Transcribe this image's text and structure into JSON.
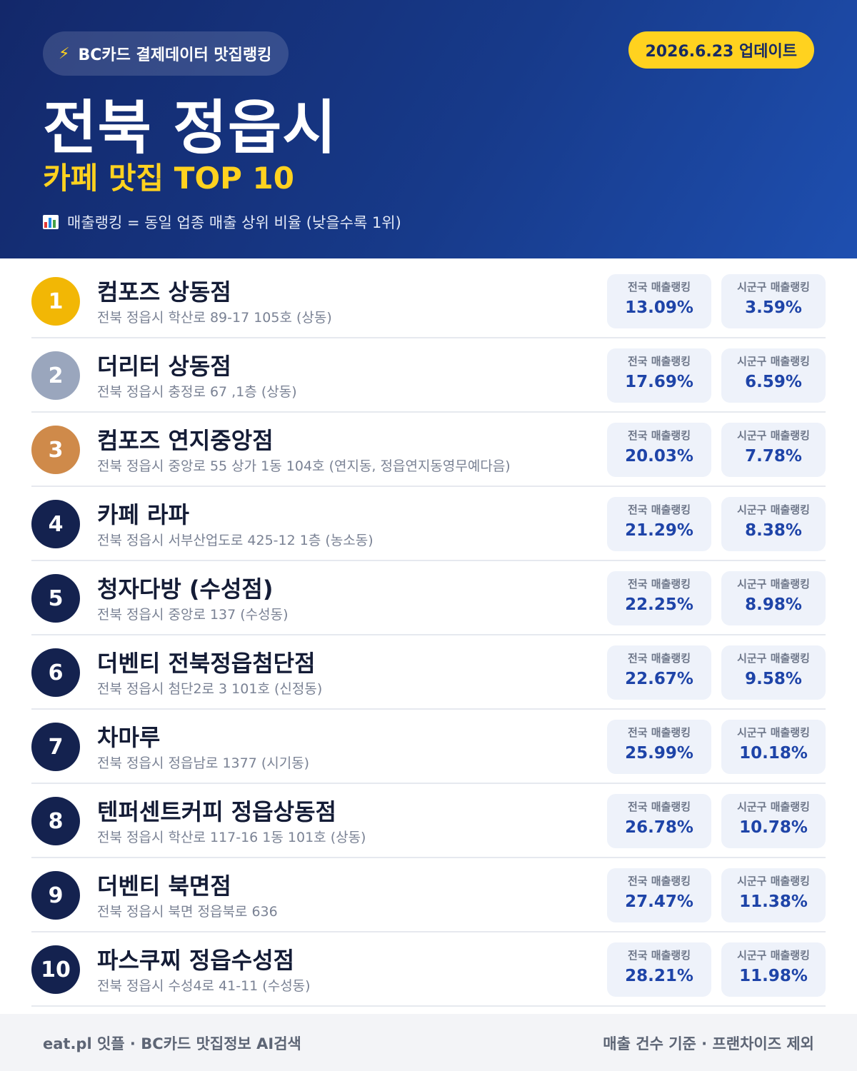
{
  "header": {
    "source_pill": "BC카드 결제데이터 맛집랭킹",
    "bolt_icon": "lightning-bolt-icon",
    "update_date": "2026.6.23 업데이트",
    "city": "전북 정읍시",
    "subtitle": "카페 맛집 TOP 10",
    "note_icon": "bar-chart-icon",
    "note": "매출랭킹 = 동일 업종 매출 상위 비율 (낮을수록 1위)"
  },
  "colors": {
    "header_dark": "#13286a",
    "header_light": "#1e4fb0",
    "accent_yellow": "#ffd21f",
    "rank_default": "#14224f",
    "rank_gold": "#f2b705",
    "rank_silver": "#9aa6bd",
    "rank_bronze": "#cf8a4a",
    "stat_value": "#1e44a8"
  },
  "labels": {
    "national": "전국 매출랭킹",
    "local": "시군구 매출랭킹"
  },
  "items": [
    {
      "rank": "1",
      "name": "컴포즈 상동점",
      "address": "전북 정읍시 학산로 89-17 105호 (상동)",
      "national": "13.09%",
      "local": "3.59%",
      "badge_color": "#f2b705"
    },
    {
      "rank": "2",
      "name": "더리터 상동점",
      "address": "전북 정읍시 충정로 67 ,1층 (상동)",
      "national": "17.69%",
      "local": "6.59%",
      "badge_color": "#9aa6bd"
    },
    {
      "rank": "3",
      "name": "컴포즈 연지중앙점",
      "address": "전북 정읍시 중앙로 55 상가 1동 104호 (연지동, 정읍연지동영무예다음)",
      "national": "20.03%",
      "local": "7.78%",
      "badge_color": "#cf8a4a"
    },
    {
      "rank": "4",
      "name": "카페 라파",
      "address": "전북 정읍시 서부산업도로 425-12 1층 (농소동)",
      "national": "21.29%",
      "local": "8.38%",
      "badge_color": "#14224f"
    },
    {
      "rank": "5",
      "name": "청자다방 (수성점)",
      "address": "전북 정읍시 중앙로 137 (수성동)",
      "national": "22.25%",
      "local": "8.98%",
      "badge_color": "#14224f"
    },
    {
      "rank": "6",
      "name": "더벤티 전북정읍첨단점",
      "address": "전북 정읍시 첨단2로 3 101호 (신정동)",
      "national": "22.67%",
      "local": "9.58%",
      "badge_color": "#14224f"
    },
    {
      "rank": "7",
      "name": "차마루",
      "address": "전북 정읍시 정읍남로 1377 (시기동)",
      "national": "25.99%",
      "local": "10.18%",
      "badge_color": "#14224f"
    },
    {
      "rank": "8",
      "name": "텐퍼센트커피 정읍상동점",
      "address": "전북 정읍시 학산로 117-16 1동 101호 (상동)",
      "national": "26.78%",
      "local": "10.78%",
      "badge_color": "#14224f"
    },
    {
      "rank": "9",
      "name": "더벤티 북면점",
      "address": "전북 정읍시 북면 정읍북로 636",
      "national": "27.47%",
      "local": "11.38%",
      "badge_color": "#14224f"
    },
    {
      "rank": "10",
      "name": "파스쿠찌 정읍수성점",
      "address": "전북 정읍시 수성4로 41-11 (수성동)",
      "national": "28.21%",
      "local": "11.98%",
      "badge_color": "#14224f"
    }
  ],
  "footer": {
    "left": "eat.pl 잇플 · BC카드 맛집정보 AI검색",
    "right": "매출 건수 기준 · 프랜차이즈 제외"
  }
}
